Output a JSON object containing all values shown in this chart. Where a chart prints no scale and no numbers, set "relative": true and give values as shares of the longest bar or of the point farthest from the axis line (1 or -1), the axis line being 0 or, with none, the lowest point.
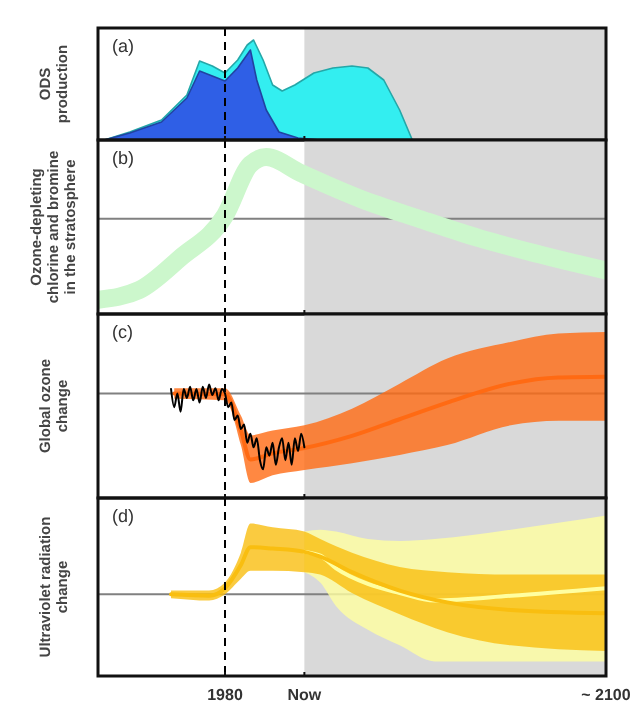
{
  "chart_data": [
    {
      "type": "area",
      "relative": true,
      "ylabel": "ODS\nproduction",
      "annotations": [
        "(a)"
      ],
      "xlim": [
        1940,
        2100
      ],
      "xticks": [
        {
          "value": 1980,
          "label": null
        },
        {
          "value": 2005,
          "label": null
        },
        {
          "value": 2100,
          "label": null
        }
      ],
      "tick_labels": false,
      "bands": [
        {
          "axis": "x",
          "from": 2005,
          "to": 2100,
          "color": "#d9d9d9"
        }
      ],
      "ref_lines": [
        {
          "axis": "x",
          "value": 1980,
          "color": "#000000",
          "line_style": "dashed"
        }
      ],
      "series": [
        {
          "color": "#33eef0",
          "x": [
            1942,
            1950,
            1960,
            1968,
            1972,
            1976,
            1980,
            1984,
            1987,
            1989,
            1992,
            1995,
            1998,
            2002,
            2008,
            2014,
            2020,
            2025,
            2030,
            2035,
            2039
          ],
          "values": [
            0,
            0.08,
            0.2,
            0.45,
            0.79,
            0.74,
            0.67,
            0.8,
            0.95,
            1,
            0.8,
            0.55,
            0.49,
            0.55,
            0.67,
            0.72,
            0.74,
            0.72,
            0.6,
            0.3,
            0
          ]
        },
        {
          "color": "#2f5fe6",
          "x": [
            1942,
            1950,
            1960,
            1968,
            1972,
            1976,
            1980,
            1984,
            1988,
            1990,
            1993,
            1997,
            2003,
            2010
          ],
          "values": [
            0,
            0.07,
            0.18,
            0.42,
            0.69,
            0.64,
            0.59,
            0.72,
            0.9,
            0.6,
            0.3,
            0.08,
            0.02,
            0
          ]
        }
      ]
    },
    {
      "type": "line",
      "relative": true,
      "ylabel": "Ozone-depleting\nchlorine and bromine\nin the stratosphere",
      "annotations": [
        "(b)"
      ],
      "xlim": [
        1940,
        2100
      ],
      "xticks": [
        {
          "value": 1980,
          "label": null
        },
        {
          "value": 2005,
          "label": null
        },
        {
          "value": 2100,
          "label": null
        }
      ],
      "tick_labels": false,
      "bands": [
        {
          "axis": "x",
          "from": 2005,
          "to": 2100,
          "color": "#d9d9d9"
        }
      ],
      "ref_lines": [
        {
          "axis": "x",
          "value": 1980,
          "color": "#000000",
          "line_style": "dashed"
        }
      ],
      "series": [
        {
          "color": "#ccf7cc",
          "x": [
            1940,
            1953,
            1966,
            1980,
            1988,
            1993,
            2004,
            2023,
            2041,
            2060,
            2079,
            2100
          ],
          "values": [
            -1,
            -0.88,
            -0.48,
            0.04,
            0.67,
            0.76,
            0.56,
            0.24,
            0,
            -0.24,
            -0.44,
            -0.64
          ]
        }
      ]
    },
    {
      "type": "line",
      "relative": true,
      "ylabel": "Global ozone\nchange",
      "annotations": [
        "(c)"
      ],
      "xlim": [
        1940,
        2100
      ],
      "xticks": [
        {
          "value": 1980,
          "label": null
        },
        {
          "value": 2005,
          "label": null
        },
        {
          "value": 2100,
          "label": null
        }
      ],
      "tick_labels": false,
      "bands": [
        {
          "axis": "x",
          "from": 2005,
          "to": 2100,
          "color": "#d9d9d9"
        }
      ],
      "ref_lines": [
        {
          "axis": "x",
          "value": 1980,
          "color": "#000000",
          "line_style": "dashed"
        }
      ],
      "series": [
        {
          "color": "#ff6a13",
          "x": [
            1964,
            1980,
            1985,
            1988,
            1995,
            2005,
            2020,
            2035,
            2050,
            2070,
            2085,
            2100
          ],
          "values": [
            0,
            -0.01,
            -0.49,
            -0.87,
            -0.79,
            -0.72,
            -0.56,
            -0.34,
            -0.12,
            0.13,
            0.21,
            0.22
          ],
          "lower": [
            -0.07,
            -0.09,
            -0.68,
            -1.18,
            -1.08,
            -1.01,
            -0.92,
            -0.81,
            -0.68,
            -0.42,
            -0.36,
            -0.36
          ],
          "upper": [
            0.07,
            0.07,
            -0.29,
            -0.55,
            -0.49,
            -0.42,
            -0.2,
            0.13,
            0.46,
            0.68,
            0.79,
            0.81
          ]
        },
        {
          "color": "#000000",
          "x": [
            1963,
            1964,
            1965,
            1966,
            1967,
            1968,
            1969,
            1970,
            1971,
            1972,
            1973,
            1974,
            1975,
            1976,
            1977,
            1978,
            1979,
            1980,
            1981,
            1982,
            1983,
            1984,
            1985,
            1986,
            1987,
            1988,
            1989,
            1990,
            1991,
            1992,
            1993,
            1994,
            1995,
            1996,
            1997,
            1998,
            1999,
            2000,
            2001,
            2002,
            2003,
            2004,
            2005
          ],
          "values": [
            0.06,
            -0.18,
            0,
            -0.24,
            0.06,
            -0.06,
            0.09,
            -0.09,
            0.06,
            -0.12,
            0.09,
            -0.06,
            0.12,
            -0.02,
            0.07,
            -0.09,
            0.06,
            0,
            -0.18,
            -0.12,
            -0.35,
            -0.29,
            -0.47,
            -0.41,
            -0.65,
            -0.53,
            -0.71,
            -0.59,
            -0.88,
            -1,
            -0.71,
            -0.82,
            -0.65,
            -0.94,
            -0.71,
            -0.59,
            -0.88,
            -0.65,
            -0.94,
            -0.59,
            -0.76,
            -0.53,
            -0.71
          ]
        }
      ]
    },
    {
      "type": "line",
      "relative": true,
      "ylabel": "Ultraviolet radiation\nchange",
      "annotations": [
        "(d)"
      ],
      "xlim": [
        1940,
        2100
      ],
      "xticks": [
        {
          "value": 1980,
          "label": "1980"
        },
        {
          "value": 2005,
          "label": "Now"
        },
        {
          "value": 2100,
          "label": "~ 2100"
        }
      ],
      "tick_labels": "x",
      "bands": [
        {
          "axis": "x",
          "from": 2005,
          "to": 2100,
          "color": "#d9d9d9"
        }
      ],
      "ref_lines": [
        {
          "axis": "x",
          "value": 1980,
          "color": "#000000",
          "line_style": "dashed"
        }
      ],
      "series": [
        {
          "color": "#ffffa0",
          "x": [
            2005,
            2010,
            2015,
            2025,
            2035,
            2046,
            2070,
            2100
          ],
          "values": [
            0.9,
            0.82,
            0.55,
            0.22,
            0.03,
            -0.13,
            -0.03,
            0.13
          ],
          "lower": [
            0.47,
            0.25,
            -0.25,
            -0.75,
            -1.08,
            -1.42,
            -1.42,
            -1.42
          ],
          "upper": [
            1.33,
            1.37,
            1.33,
            1.17,
            1.13,
            1.17,
            1.37,
            1.67
          ]
        },
        {
          "color": "#f9be10",
          "x": [
            1963,
            1975,
            1980,
            1985,
            1988,
            1995,
            2005,
            2010,
            2020,
            2035,
            2050,
            2070,
            2100
          ],
          "values": [
            0,
            -0.03,
            0.13,
            0.62,
            1,
            0.97,
            0.9,
            0.8,
            0.47,
            0.08,
            -0.17,
            -0.33,
            -0.4
          ],
          "lower": [
            -0.08,
            -0.13,
            0,
            0.33,
            0.5,
            0.5,
            0.47,
            0.42,
            0.03,
            -0.42,
            -0.8,
            -1.08,
            -1.2
          ],
          "upper": [
            0.08,
            0.08,
            0.25,
            0.88,
            1.5,
            1.42,
            1.33,
            1.17,
            0.88,
            0.58,
            0.47,
            0.42,
            0.42
          ]
        }
      ]
    }
  ]
}
